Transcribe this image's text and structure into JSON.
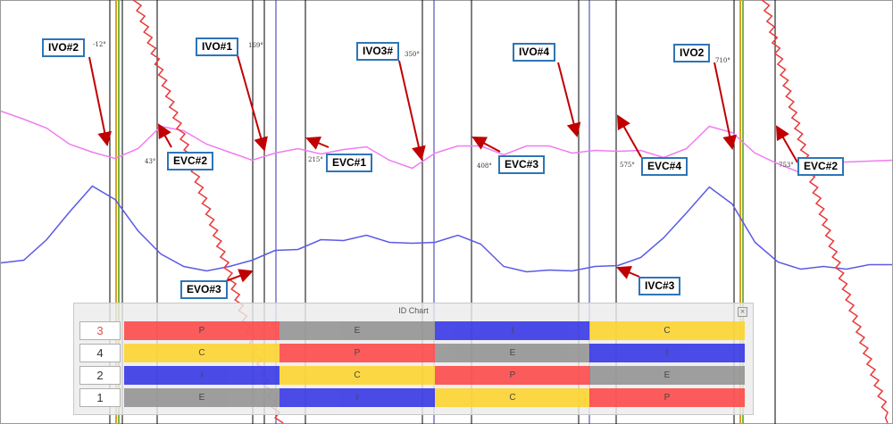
{
  "callouts": {
    "ivo2_left": "IVO#2",
    "ivo1": "IVO#1",
    "ivo3": "IVO3#",
    "ivo4": "IVO#4",
    "ivo2_right": "IVO2",
    "evc2_left": "EVC#2",
    "evc1": "EVC#1",
    "evc3": "EVC#3",
    "evc4": "EVC#4",
    "evc2_right": "EVC#2",
    "evo3": "EVO#3",
    "ivc3": "IVC#3"
  },
  "degree_labels": {
    "ivo2_left": "-12°",
    "ivo1": "169°",
    "ivo3": "350°",
    "ivo2_right": "710°",
    "evc2_left": "43°",
    "evc1": "215°",
    "evc3": "408°",
    "evc4": "575°",
    "evc2_right": "753°"
  },
  "id_chart": {
    "title": "ID Chart",
    "close_label": "×",
    "rows": [
      {
        "cylinder": "3",
        "active": true,
        "cells": [
          {
            "text": "P",
            "color": "red"
          },
          {
            "text": "E",
            "color": "gray"
          },
          {
            "text": "I",
            "color": "blue"
          },
          {
            "text": "C",
            "color": "yellow"
          }
        ]
      },
      {
        "cylinder": "4",
        "active": false,
        "cells": [
          {
            "text": "C",
            "color": "yellow"
          },
          {
            "text": "P",
            "color": "red"
          },
          {
            "text": "E",
            "color": "gray"
          },
          {
            "text": "I",
            "color": "blue"
          }
        ]
      },
      {
        "cylinder": "2",
        "active": false,
        "cells": [
          {
            "text": "I",
            "color": "blue"
          },
          {
            "text": "C",
            "color": "yellow"
          },
          {
            "text": "P",
            "color": "red"
          },
          {
            "text": "E",
            "color": "gray"
          }
        ]
      },
      {
        "cylinder": "1",
        "active": false,
        "cells": [
          {
            "text": "E",
            "color": "gray"
          },
          {
            "text": "I",
            "color": "blue"
          },
          {
            "text": "C",
            "color": "yellow"
          },
          {
            "text": "P",
            "color": "red"
          }
        ]
      }
    ]
  },
  "colors": {
    "red": "#ff3b3b",
    "yellow": "#ffd21f",
    "blue": "#2727e6",
    "gray": "#8c8c8c",
    "magenta_trace": "#f07cf0",
    "blue_trace": "#5a5ae6",
    "red_trace": "#e83a3a",
    "callout_border": "#2e75b6",
    "arrow": "#c00000",
    "cursor_orange": "#d9a02a"
  },
  "chart_data": {
    "type": "line",
    "series": [
      {
        "values": [
          126,
          132,
          145,
          160,
          172,
          176,
          168,
          140,
          148,
          160,
          172,
          178,
          173,
          165,
          174,
          166,
          166,
          178,
          190,
          170,
          165,
          162,
          175,
          162,
          165,
          170,
          170,
          168,
          170,
          175,
          168,
          140,
          150,
          170,
          185,
          192,
          182,
          180,
          182,
          178
        ]
      },
      {
        "values": [
          296,
          290,
          270,
          236,
          210,
          222,
          260,
          283,
          300,
          302,
          300,
          290,
          282,
          278,
          270,
          268,
          265,
          270,
          274,
          270,
          265,
          272,
          300,
          303,
          304,
          302,
          300,
          296,
          290,
          265,
          240,
          208,
          230,
          270,
          295,
          300,
          300,
          300,
          298,
          295
        ]
      }
    ],
    "cursors_deg": [
      -12,
      43,
      169,
      215,
      350,
      408,
      575,
      710,
      753
    ]
  }
}
